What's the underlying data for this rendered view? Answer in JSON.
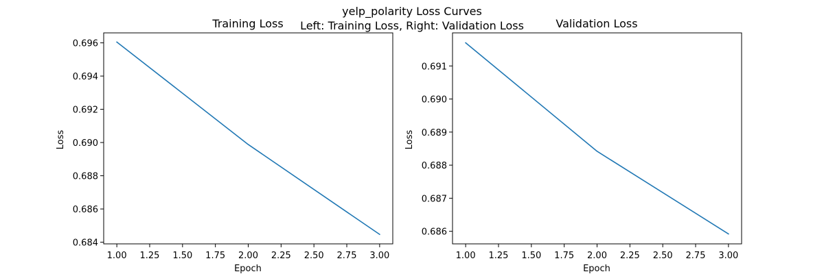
{
  "figure": {
    "suptitle": "yelp_polarity Loss Curves",
    "subtitle": "Left: Training Loss, Right: Validation Loss"
  },
  "chart_data": [
    {
      "type": "line",
      "title": "Training Loss",
      "xlabel": "Epoch",
      "ylabel": "Loss",
      "x": [
        1,
        2,
        3
      ],
      "series": [
        {
          "values": [
            0.69605,
            0.68988,
            0.68447
          ],
          "color": "#1f77b4"
        }
      ],
      "xlim": [
        0.9,
        3.1
      ],
      "ylim": [
        0.6839,
        0.6966
      ],
      "xticks": [
        1.0,
        1.25,
        1.5,
        1.75,
        2.0,
        2.25,
        2.5,
        2.75,
        3.0
      ],
      "xtick_labels": [
        "1.00",
        "1.25",
        "1.50",
        "1.75",
        "2.00",
        "2.25",
        "2.50",
        "2.75",
        "3.00"
      ],
      "yticks": [
        0.684,
        0.686,
        0.688,
        0.69,
        0.692,
        0.694,
        0.696
      ],
      "ytick_labels": [
        "0.684",
        "0.686",
        "0.688",
        "0.690",
        "0.692",
        "0.694",
        "0.696"
      ],
      "grid": false,
      "legend": false
    },
    {
      "type": "line",
      "title": "Validation Loss",
      "xlabel": "Epoch",
      "ylabel": "Loss",
      "x": [
        1,
        2,
        3
      ],
      "series": [
        {
          "values": [
            0.6917,
            0.68842,
            0.68592
          ],
          "color": "#1f77b4"
        }
      ],
      "xlim": [
        0.9,
        3.1
      ],
      "ylim": [
        0.68562,
        0.692
      ],
      "xticks": [
        1.0,
        1.25,
        1.5,
        1.75,
        2.0,
        2.25,
        2.5,
        2.75,
        3.0
      ],
      "xtick_labels": [
        "1.00",
        "1.25",
        "1.50",
        "1.75",
        "2.00",
        "2.25",
        "2.50",
        "2.75",
        "3.00"
      ],
      "yticks": [
        0.686,
        0.687,
        0.688,
        0.689,
        0.69,
        0.691
      ],
      "ytick_labels": [
        "0.686",
        "0.687",
        "0.688",
        "0.689",
        "0.690",
        "0.691"
      ],
      "grid": false,
      "legend": false
    }
  ]
}
